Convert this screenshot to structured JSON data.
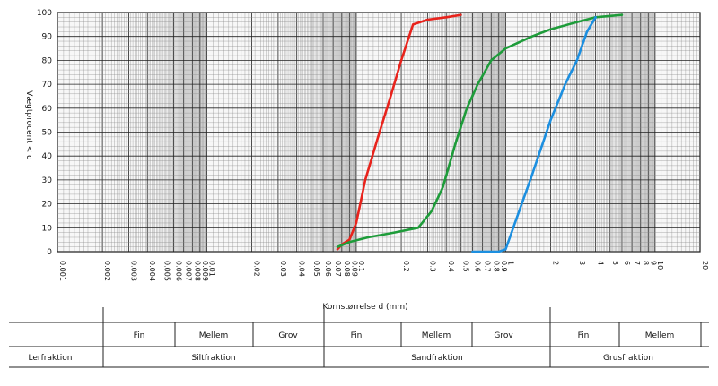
{
  "chart_data": {
    "type": "line",
    "xscale": "log",
    "xlim": [
      0.001,
      20
    ],
    "ylim": [
      0,
      100
    ],
    "ylabel": "Vægtprocent < d",
    "xlabel": "Kornstørrelse d (mm)",
    "y_ticks": [
      "0",
      "10",
      "20",
      "30",
      "40",
      "50",
      "60",
      "70",
      "80",
      "90",
      "100"
    ],
    "x_ticks": [
      {
        "v": 0.001,
        "label": "0.001"
      },
      {
        "v": 0.002,
        "label": "0.002"
      },
      {
        "v": 0.003,
        "label": "0.003"
      },
      {
        "v": 0.004,
        "label": "0.004"
      },
      {
        "v": 0.005,
        "label": "0.005"
      },
      {
        "v": 0.006,
        "label": "0.006"
      },
      {
        "v": 0.007,
        "label": "0.007"
      },
      {
        "v": 0.008,
        "label": "0.008"
      },
      {
        "v": 0.009,
        "label": "0.009"
      },
      {
        "v": 0.01,
        "label": "0.01"
      },
      {
        "v": 0.02,
        "label": "0.02"
      },
      {
        "v": 0.03,
        "label": "0.03"
      },
      {
        "v": 0.04,
        "label": "0.04"
      },
      {
        "v": 0.05,
        "label": "0.05"
      },
      {
        "v": 0.06,
        "label": "0.06"
      },
      {
        "v": 0.07,
        "label": "0.07"
      },
      {
        "v": 0.08,
        "label": "0.08"
      },
      {
        "v": 0.09,
        "label": "0.09"
      },
      {
        "v": 0.1,
        "label": "0.1"
      },
      {
        "v": 0.2,
        "label": "0.2"
      },
      {
        "v": 0.3,
        "label": "0.3"
      },
      {
        "v": 0.4,
        "label": "0.4"
      },
      {
        "v": 0.5,
        "label": "0.5"
      },
      {
        "v": 0.6,
        "label": "0.6"
      },
      {
        "v": 0.7,
        "label": "0.7"
      },
      {
        "v": 0.8,
        "label": "0.8"
      },
      {
        "v": 0.9,
        "label": "0.9"
      },
      {
        "v": 1,
        "label": "1"
      },
      {
        "v": 2,
        "label": "2"
      },
      {
        "v": 3,
        "label": "3"
      },
      {
        "v": 4,
        "label": "4"
      },
      {
        "v": 5,
        "label": "5"
      },
      {
        "v": 6,
        "label": "6"
      },
      {
        "v": 7,
        "label": "7"
      },
      {
        "v": 8,
        "label": "8"
      },
      {
        "v": 9,
        "label": "9"
      },
      {
        "v": 10,
        "label": "10"
      },
      {
        "v": 20,
        "label": "20"
      }
    ],
    "grid": true,
    "series": [
      {
        "color": "#e8231c",
        "points": [
          [
            0.075,
            1
          ],
          [
            0.08,
            3
          ],
          [
            0.09,
            5
          ],
          [
            0.1,
            12
          ],
          [
            0.115,
            30
          ],
          [
            0.14,
            48
          ],
          [
            0.17,
            65
          ],
          [
            0.2,
            80
          ],
          [
            0.24,
            95
          ],
          [
            0.3,
            97
          ],
          [
            0.4,
            98
          ],
          [
            0.5,
            99
          ]
        ]
      },
      {
        "color": "#1e9c3a",
        "points": [
          [
            0.075,
            2
          ],
          [
            0.09,
            4
          ],
          [
            0.12,
            6
          ],
          [
            0.18,
            8
          ],
          [
            0.26,
            10
          ],
          [
            0.32,
            17
          ],
          [
            0.38,
            27
          ],
          [
            0.46,
            45
          ],
          [
            0.55,
            60
          ],
          [
            0.65,
            70
          ],
          [
            0.8,
            80
          ],
          [
            1,
            85
          ],
          [
            1.5,
            90
          ],
          [
            2,
            93
          ],
          [
            3,
            96
          ],
          [
            4,
            98
          ],
          [
            6,
            99
          ]
        ]
      },
      {
        "color": "#1c8fe0",
        "points": [
          [
            0.6,
            0
          ],
          [
            0.9,
            0
          ],
          [
            1,
            1
          ],
          [
            1.2,
            15
          ],
          [
            1.5,
            32
          ],
          [
            2,
            55
          ],
          [
            2.5,
            70
          ],
          [
            3,
            80
          ],
          [
            3.5,
            92
          ],
          [
            4,
            98
          ]
        ]
      }
    ]
  },
  "table": {
    "rows": {
      "sub": [
        {
          "label": "Fin",
          "group": "silt"
        },
        {
          "label": "Mellem",
          "group": "silt"
        },
        {
          "label": "Grov",
          "group": "silt"
        },
        {
          "label": "Fin",
          "group": "sand"
        },
        {
          "label": "Mellem",
          "group": "sand"
        },
        {
          "label": "Grov",
          "group": "sand"
        },
        {
          "label": "Fin",
          "group": "grus"
        },
        {
          "label": "Mellem",
          "group": "grus"
        }
      ],
      "fractions": [
        "Lerfraktion",
        "Siltfraktion",
        "Sandfraktion",
        "Grusfraktion"
      ]
    }
  }
}
